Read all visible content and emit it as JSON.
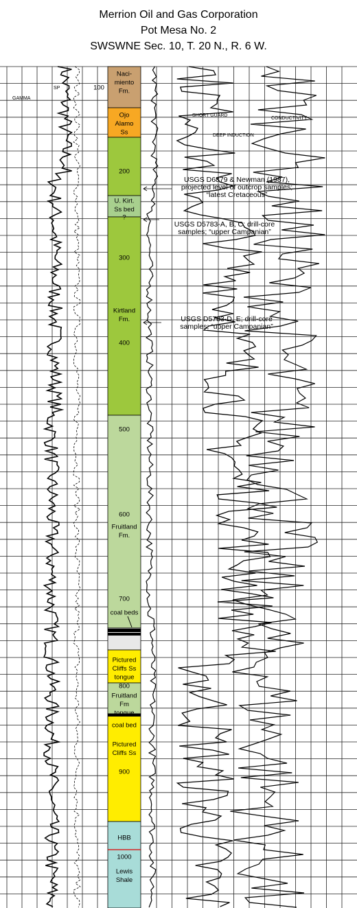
{
  "header": {
    "title": [
      "Merrion Oil and Gas Corporation",
      "Pot Mesa No. 2",
      "SWSWNE Sec. 10, T. 20 N., R. 6 W."
    ]
  },
  "units": [
    {
      "label": [
        "Naci-",
        "miento",
        "Fm."
      ]
    },
    {
      "label": [
        "Ojo",
        "Alamo",
        "Ss"
      ]
    },
    {
      "label": [
        "U. Kirt.",
        "Ss bed"
      ]
    },
    {
      "label": [
        "Kirtland",
        "Fm."
      ]
    },
    {
      "label": [
        "Fruitland",
        "Fm."
      ]
    },
    {
      "label": [
        "coal beds"
      ]
    },
    {
      "label": [
        "Pictured",
        "Cliffs Ss",
        "tongue"
      ]
    },
    {
      "label": [
        "Fruitland",
        "Fm",
        "tongue"
      ]
    },
    {
      "label": [
        "coal bed"
      ]
    },
    {
      "label": [
        "Pictured",
        "Cliffs Ss"
      ]
    },
    {
      "label": [
        "HBB"
      ]
    },
    {
      "label": [
        "Lewis",
        "Shale"
      ]
    },
    {
      "label": [
        "?"
      ]
    }
  ],
  "depths": [
    100,
    200,
    300,
    400,
    500,
    600,
    700,
    800,
    900,
    1000
  ],
  "annotations": [
    {
      "lines": [
        "USGS D6879 & Newman (1987),",
        "projected level of outcrop samples;",
        "“latest Cretaceous”"
      ]
    },
    {
      "lines": [
        "USGS D5783-A, B, C; drill-core",
        "samples; “upper Campanian”"
      ]
    },
    {
      "lines": [
        "USGS D5783-D, E; drill-core",
        "samples; “upper Campanian”"
      ]
    }
  ],
  "curve_labels": [
    "SHORT GUARD",
    "DEEP INDUCTION",
    "CONDUCTIVITY",
    "GAMMA",
    "SP"
  ]
}
